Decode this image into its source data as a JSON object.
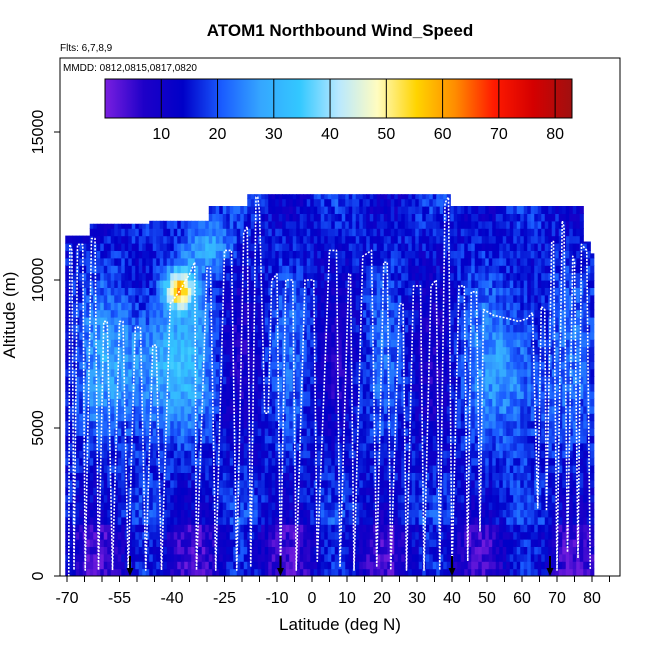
{
  "chart_data": {
    "type": "heatmap",
    "title": "ATOM1 Northbound Wind_Speed",
    "flights_label": "Flts: 6,7,8,9",
    "dates_label": "MMDD: 0812,0815,0817,0820",
    "xlabel": "Latitude (deg N)",
    "ylabel": "Altitude (m)",
    "xlim": [
      -72,
      88
    ],
    "ylim": [
      0,
      17500
    ],
    "x_ticks": [
      -70,
      -55,
      -40,
      -25,
      -10,
      0,
      10,
      20,
      30,
      40,
      50,
      60,
      70,
      80
    ],
    "y_ticks": [
      0,
      5000,
      10000,
      15000
    ],
    "colorbar": {
      "min": 0,
      "max": 83,
      "ticks": [
        10,
        20,
        30,
        40,
        50,
        60,
        70,
        80
      ],
      "stops": [
        "#7a1fe0",
        "#1e00c8",
        "#0000c8",
        "#1a5cff",
        "#35a6ff",
        "#33c8ff",
        "#b8e8ff",
        "#fffcc0",
        "#ffd400",
        "#ff8c00",
        "#ff1a00",
        "#d40000",
        "#a01010"
      ]
    },
    "flight_track_altitude_m": [
      [
        -69.5,
        0
      ],
      [
        -69.2,
        11200
      ],
      [
        -68.6,
        11000
      ],
      [
        -68.0,
        200
      ],
      [
        -67.0,
        11200
      ],
      [
        -65.5,
        11200
      ],
      [
        -64.8,
        200
      ],
      [
        -63.0,
        11400
      ],
      [
        -62.0,
        11400
      ],
      [
        -61.0,
        200
      ],
      [
        -59.5,
        8600
      ],
      [
        -58.5,
        8600
      ],
      [
        -57.0,
        200
      ],
      [
        -55.0,
        8600
      ],
      [
        -54.0,
        8600
      ],
      [
        -52.5,
        200
      ],
      [
        -50.5,
        8400
      ],
      [
        -49.0,
        8400
      ],
      [
        -47.5,
        200
      ],
      [
        -45.5,
        7800
      ],
      [
        -44.5,
        7800
      ],
      [
        -43.0,
        200
      ],
      [
        -40.5,
        9200
      ],
      [
        -38.0,
        9600
      ],
      [
        -35.0,
        10200
      ],
      [
        -33.5,
        10600
      ],
      [
        -33.0,
        200
      ],
      [
        -30.0,
        10400
      ],
      [
        -29.0,
        10400
      ],
      [
        -27.5,
        200
      ],
      [
        -25.0,
        11000
      ],
      [
        -23.0,
        11000
      ],
      [
        -21.5,
        200
      ],
      [
        -19.5,
        11600
      ],
      [
        -18.5,
        11800
      ],
      [
        -17.5,
        300
      ],
      [
        -16.0,
        12800
      ],
      [
        -15.5,
        12800
      ],
      [
        -15.0,
        12300
      ],
      [
        -13.5,
        5500
      ],
      [
        -12.5,
        5500
      ],
      [
        -11.5,
        10000
      ],
      [
        -10.0,
        10200
      ],
      [
        -9.0,
        200
      ],
      [
        -7.5,
        10000
      ],
      [
        -5.5,
        10000
      ],
      [
        -4.5,
        200
      ],
      [
        -2.0,
        10000
      ],
      [
        0.5,
        10000
      ],
      [
        1.5,
        500
      ],
      [
        5.0,
        11000
      ],
      [
        7.0,
        11000
      ],
      [
        8.0,
        300
      ],
      [
        10.5,
        10200
      ],
      [
        11.0,
        10200
      ],
      [
        12.0,
        200
      ],
      [
        14.5,
        10800
      ],
      [
        17.0,
        11000
      ],
      [
        18.5,
        300
      ],
      [
        20.5,
        10600
      ],
      [
        21.5,
        10600
      ],
      [
        22.5,
        200
      ],
      [
        25.0,
        9200
      ],
      [
        26.0,
        9200
      ],
      [
        27.0,
        200
      ],
      [
        29.0,
        9800
      ],
      [
        31.0,
        9800
      ],
      [
        32.0,
        200
      ],
      [
        34.0,
        9800
      ],
      [
        35.5,
        10000
      ],
      [
        36.5,
        200
      ],
      [
        38.0,
        12600
      ],
      [
        39.0,
        12800
      ],
      [
        40.0,
        200
      ],
      [
        42.0,
        9800
      ],
      [
        43.5,
        9800
      ],
      [
        44.5,
        500
      ],
      [
        45.5,
        9600
      ],
      [
        47.0,
        9600
      ],
      [
        48.0,
        1500
      ],
      [
        49.0,
        9000
      ],
      [
        52.0,
        8800
      ],
      [
        56.0,
        8700
      ],
      [
        59.0,
        8600
      ],
      [
        61.5,
        8700
      ],
      [
        63.0,
        8900
      ],
      [
        64.5,
        2300
      ],
      [
        65.5,
        9100
      ],
      [
        66.5,
        9000
      ],
      [
        67.0,
        2200
      ],
      [
        68.5,
        11300
      ],
      [
        69.0,
        11300
      ],
      [
        70.0,
        200
      ],
      [
        71.5,
        12000
      ],
      [
        72.0,
        11800
      ],
      [
        73.0,
        800
      ],
      [
        74.5,
        10800
      ],
      [
        75.0,
        10600
      ],
      [
        76.0,
        600
      ],
      [
        77.0,
        11200
      ],
      [
        78.5,
        11000
      ],
      [
        79.5,
        200
      ]
    ],
    "lower_turn_arrows_deg_n": [
      -52,
      -9,
      40,
      68
    ]
  }
}
